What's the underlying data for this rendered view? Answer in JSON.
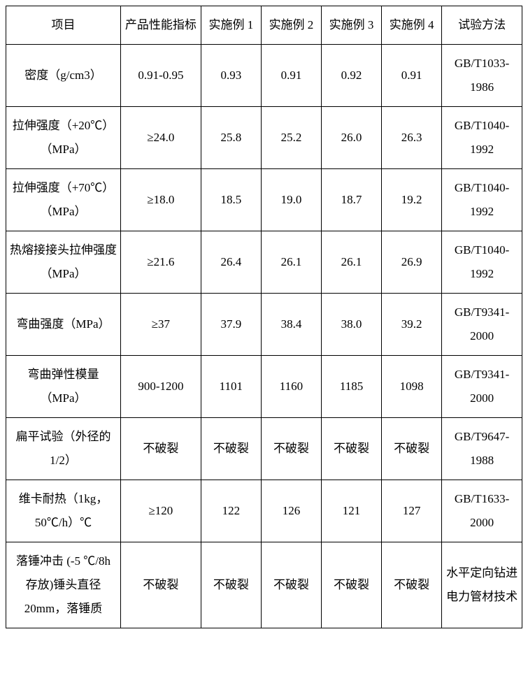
{
  "table": {
    "columns": [
      "项目",
      "产品性能指标",
      "实施例 1",
      "实施例 2",
      "实施例 3",
      "实施例 4",
      "试验方法"
    ],
    "rows": [
      [
        "密度（g/cm3）",
        "0.91-0.95",
        "0.93",
        "0.91",
        "0.92",
        "0.91",
        "GB/T1033-1986"
      ],
      [
        "拉伸强度（+20℃）（MPa）",
        "≥24.0",
        "25.8",
        "25.2",
        "26.0",
        "26.3",
        "GB/T1040-1992"
      ],
      [
        "拉伸强度（+70℃）（MPa）",
        "≥18.0",
        "18.5",
        "19.0",
        "18.7",
        "19.2",
        "GB/T1040-1992"
      ],
      [
        "热熔接接头拉伸强度（MPa）",
        "≥21.6",
        "26.4",
        "26.1",
        "26.1",
        "26.9",
        "GB/T1040-1992"
      ],
      [
        "弯曲强度（MPa）",
        "≥37",
        "37.9",
        "38.4",
        "38.0",
        "39.2",
        "GB/T9341-2000"
      ],
      [
        "弯曲弹性模量（MPa）",
        "900-1200",
        "1101",
        "1160",
        "1185",
        "1098",
        "GB/T9341-2000"
      ],
      [
        "扁平试验（外径的 1/2）",
        "不破裂",
        "不破裂",
        "不破裂",
        "不破裂",
        "不破裂",
        "GB/T9647-1988"
      ],
      [
        "维卡耐热（1kg，50℃/h）℃",
        "≥120",
        "122",
        "126",
        "121",
        "127",
        "GB/T1633-2000"
      ],
      [
        "落锤冲击 (-5 ℃/8h 存放)锤头直径 20mm，落锤质",
        "不破裂",
        "不破裂",
        "不破裂",
        "不破裂",
        "不破裂",
        "水平定向钻进电力管材技术"
      ]
    ],
    "col_classes": [
      "col0",
      "col1",
      "col2",
      "col3",
      "col4",
      "col5",
      "col6"
    ],
    "border_color": "#000000",
    "background_color": "#ffffff",
    "font_family": "SimSun",
    "header_fontsize": 17,
    "cell_fontsize": 17
  }
}
